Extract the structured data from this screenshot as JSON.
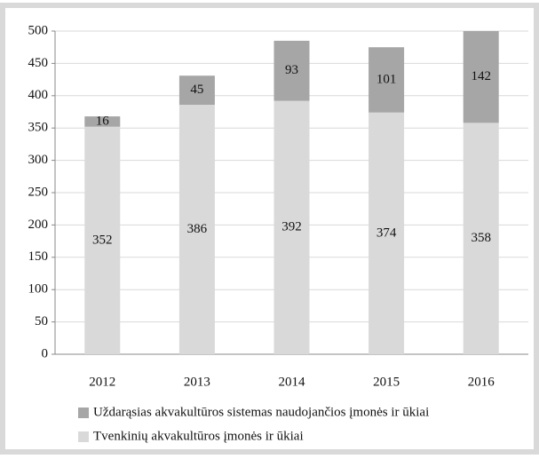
{
  "chart_data": {
    "type": "stacked_bar",
    "categories": [
      "2012",
      "2013",
      "2014",
      "2015",
      "2016"
    ],
    "series": [
      {
        "name": "Uždarąsias akvakultūros sistemas naudojančios įmonės ir ūkiai",
        "color": "#a6a6a6",
        "values": [
          16,
          45,
          93,
          101,
          142
        ]
      },
      {
        "name": "Tvenkinių akvakultūros įmonės ir ūkiai",
        "color": "#d9d9d9",
        "values": [
          352,
          386,
          392,
          374,
          358
        ]
      }
    ],
    "ylim": [
      0,
      500
    ],
    "yticks": [
      0,
      50,
      100,
      150,
      200,
      250,
      300,
      350,
      400,
      450,
      500
    ],
    "grid": true,
    "legend": "bottom"
  }
}
